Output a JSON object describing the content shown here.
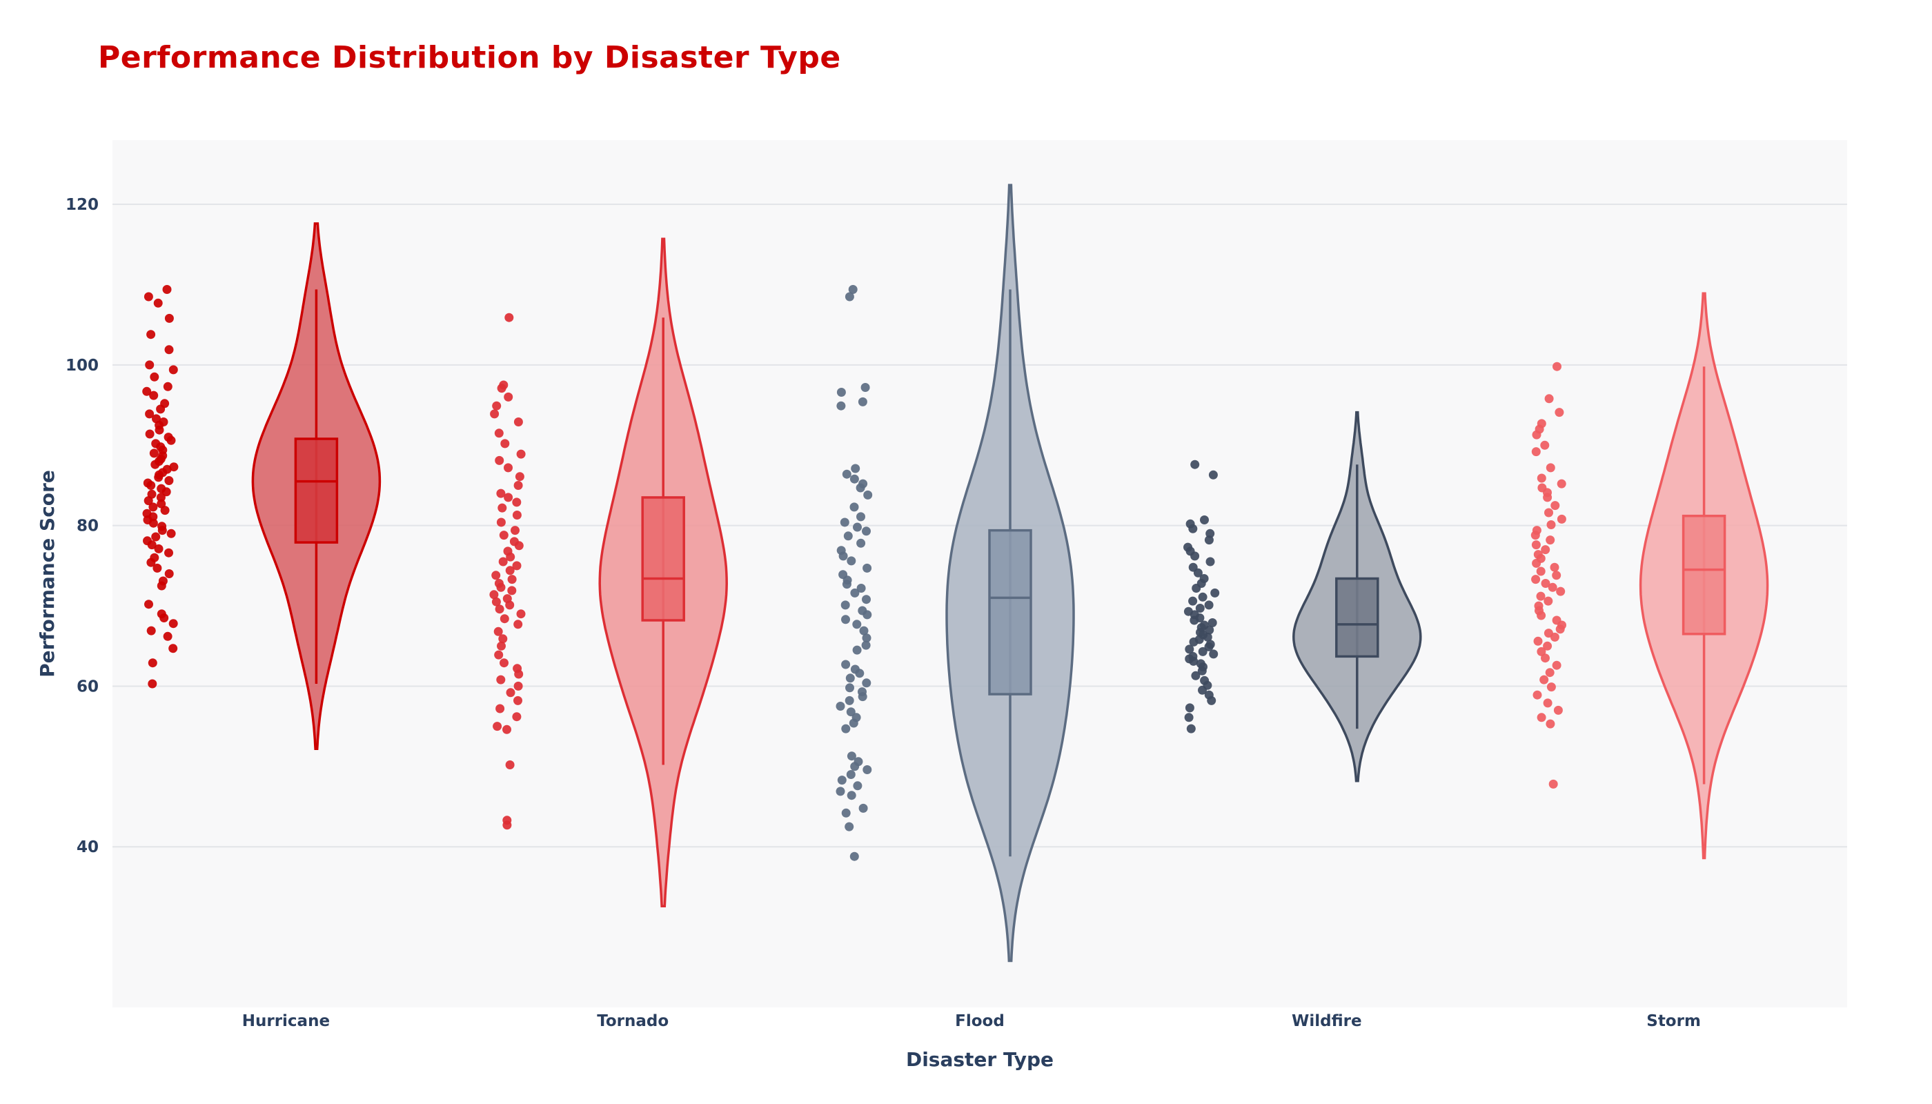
{
  "colors": {
    "title": "#cc0000",
    "plot_background": "#f8f8f9",
    "grid": "#e2e4e8",
    "axis_text": "#2a3f5f"
  },
  "chart_data": {
    "type": "violin",
    "title": "Performance Distribution by Disaster Type",
    "xlabel": "Disaster Type",
    "ylabel": "Performance Score",
    "ylim": [
      20,
      128
    ],
    "yticks": [
      40,
      60,
      80,
      100,
      120
    ],
    "grid": true,
    "legend": "none",
    "categories": [
      "Hurricane",
      "Tornado",
      "Flood",
      "Wildfire",
      "Storm"
    ],
    "series": [
      {
        "category": "Hurricane",
        "color": "#cc0000",
        "fill": "#d9666a",
        "box_fill": "#d43a3e",
        "violin_extent": [
          52.2,
          117.6
        ],
        "box": {
          "lower_fence": 60.3,
          "q1": 77.9,
          "median": 85.5,
          "q3": 90.8,
          "upper_fence": 109.4
        },
        "points": [
          109.4,
          108.5,
          107.7,
          105.8,
          103.8,
          101.9,
          100.0,
          99.4,
          98.5,
          97.3,
          96.7,
          96.2,
          95.2,
          94.5,
          93.9,
          93.3,
          92.9,
          92.5,
          91.9,
          91.4,
          91.0,
          90.6,
          90.2,
          89.8,
          89.4,
          89.0,
          88.7,
          88.3,
          88.0,
          87.6,
          87.3,
          87.0,
          86.6,
          86.3,
          86.0,
          85.6,
          85.3,
          85.0,
          84.6,
          84.2,
          83.9,
          83.5,
          83.1,
          82.7,
          82.3,
          81.9,
          81.5,
          81.1,
          80.7,
          80.3,
          79.9,
          79.4,
          79.0,
          78.6,
          78.1,
          77.6,
          77.1,
          76.6,
          76.0,
          75.4,
          74.7,
          74.0,
          73.1,
          72.5,
          70.2,
          69.0,
          68.5,
          67.8,
          66.9,
          66.2,
          64.7,
          62.9,
          60.3
        ]
      },
      {
        "category": "Tornado",
        "color": "#dd2e34",
        "fill": "#f09a9c",
        "box_fill": "#ea6b6f",
        "violin_extent": [
          32.6,
          115.7
        ],
        "box": {
          "lower_fence": 50.2,
          "q1": 68.2,
          "median": 73.4,
          "q3": 83.5,
          "upper_fence": 105.9
        },
        "points": [
          105.9,
          97.5,
          97.1,
          96.0,
          94.9,
          93.9,
          92.9,
          91.5,
          90.2,
          88.9,
          88.1,
          87.2,
          86.1,
          85.0,
          84.0,
          83.5,
          82.9,
          82.2,
          81.3,
          80.4,
          79.4,
          78.8,
          78.0,
          77.5,
          76.8,
          76.1,
          75.5,
          75.0,
          74.4,
          73.8,
          73.3,
          72.8,
          72.3,
          71.9,
          71.4,
          70.9,
          70.5,
          70.1,
          69.6,
          69.0,
          68.4,
          67.7,
          66.8,
          65.9,
          65.0,
          63.9,
          62.9,
          62.2,
          61.5,
          60.8,
          60.0,
          59.2,
          58.2,
          57.2,
          56.2,
          55.0,
          54.6,
          50.2,
          43.3,
          42.7
        ]
      },
      {
        "category": "Flood",
        "color": "#5c6c82",
        "fill": "#aeb7c4",
        "box_fill": "#8b99ad",
        "violin_extent": [
          25.8,
          122.4
        ],
        "box": {
          "lower_fence": 38.8,
          "q1": 59.0,
          "median": 71.0,
          "q3": 79.4,
          "upper_fence": 109.4
        },
        "points": [
          109.4,
          108.5,
          97.2,
          96.6,
          95.4,
          94.9,
          87.1,
          86.4,
          85.8,
          85.2,
          84.7,
          83.8,
          82.3,
          81.1,
          80.4,
          79.8,
          79.3,
          78.7,
          77.8,
          76.9,
          76.2,
          75.6,
          74.7,
          73.9,
          73.2,
          72.7,
          72.2,
          71.6,
          70.8,
          70.1,
          69.4,
          68.9,
          68.3,
          67.7,
          66.9,
          66.0,
          65.1,
          64.5,
          62.7,
          62.1,
          61.6,
          61.0,
          60.4,
          59.8,
          59.3,
          58.7,
          58.2,
          57.5,
          56.8,
          56.1,
          55.4,
          54.7,
          51.3,
          50.6,
          50.0,
          49.6,
          49.0,
          48.3,
          47.6,
          46.9,
          46.4,
          44.8,
          44.2,
          42.5,
          38.8
        ]
      },
      {
        "category": "Wildfire",
        "color": "#3e4a5e",
        "fill": "#a3a8b2",
        "box_fill": "#737b8a",
        "violin_extent": [
          48.2,
          94.1
        ],
        "box": {
          "lower_fence": 54.7,
          "q1": 63.7,
          "median": 67.7,
          "q3": 73.4,
          "upper_fence": 87.6
        },
        "points": [
          87.6,
          86.3,
          80.7,
          80.2,
          79.6,
          79.0,
          78.2,
          77.3,
          76.8,
          76.2,
          75.5,
          74.8,
          74.1,
          73.4,
          72.8,
          72.2,
          71.6,
          71.1,
          70.6,
          70.1,
          69.7,
          69.3,
          68.9,
          68.5,
          68.2,
          67.9,
          67.6,
          67.3,
          67.0,
          66.7,
          66.4,
          66.1,
          65.8,
          65.5,
          65.2,
          64.9,
          64.6,
          64.3,
          64.0,
          63.7,
          63.4,
          63.1,
          62.8,
          62.4,
          61.9,
          61.3,
          60.7,
          60.1,
          59.5,
          58.9,
          58.2,
          57.3,
          56.1,
          54.7
        ]
      },
      {
        "category": "Storm",
        "color": "#ef5b5f",
        "fill": "#f5adaf",
        "box_fill": "#f2878a",
        "violin_extent": [
          38.6,
          108.9
        ],
        "box": {
          "lower_fence": 47.8,
          "q1": 66.5,
          "median": 74.5,
          "q3": 81.2,
          "upper_fence": 99.8
        },
        "points": [
          99.8,
          95.8,
          94.1,
          92.7,
          92.0,
          91.3,
          90.0,
          89.2,
          87.2,
          85.9,
          85.2,
          84.7,
          84.1,
          83.5,
          82.5,
          81.6,
          80.8,
          80.1,
          79.4,
          78.8,
          78.2,
          77.6,
          77.0,
          76.4,
          75.9,
          75.3,
          74.8,
          74.3,
          73.8,
          73.3,
          72.8,
          72.3,
          71.8,
          71.2,
          70.6,
          70.0,
          69.4,
          68.8,
          68.2,
          67.6,
          67.1,
          66.6,
          66.1,
          65.6,
          65.0,
          64.3,
          63.5,
          62.6,
          61.7,
          60.8,
          59.9,
          58.9,
          57.9,
          57.0,
          56.1,
          55.3,
          47.8
        ]
      }
    ]
  }
}
